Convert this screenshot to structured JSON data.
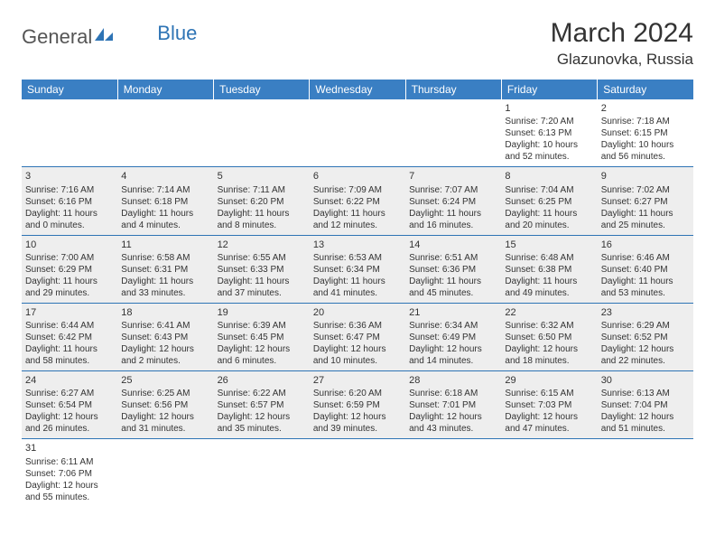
{
  "logo": {
    "part1": "General",
    "part2": "Blue"
  },
  "title": "March 2024",
  "location": "Glazunovka, Russia",
  "weekdays": [
    "Sunday",
    "Monday",
    "Tuesday",
    "Wednesday",
    "Thursday",
    "Friday",
    "Saturday"
  ],
  "colors": {
    "header_bg": "#3a7fc3",
    "header_fg": "#ffffff",
    "rule": "#2e74b5",
    "shade": "#eeeeee",
    "text": "#333333",
    "logo_gray": "#555555",
    "logo_blue": "#2e74b5"
  },
  "cells": [
    [
      null,
      null,
      null,
      null,
      null,
      {
        "n": "1",
        "sr": "Sunrise: 7:20 AM",
        "ss": "Sunset: 6:13 PM",
        "d1": "Daylight: 10 hours",
        "d2": "and 52 minutes."
      },
      {
        "n": "2",
        "sr": "Sunrise: 7:18 AM",
        "ss": "Sunset: 6:15 PM",
        "d1": "Daylight: 10 hours",
        "d2": "and 56 minutes."
      }
    ],
    [
      {
        "n": "3",
        "sr": "Sunrise: 7:16 AM",
        "ss": "Sunset: 6:16 PM",
        "d1": "Daylight: 11 hours",
        "d2": "and 0 minutes."
      },
      {
        "n": "4",
        "sr": "Sunrise: 7:14 AM",
        "ss": "Sunset: 6:18 PM",
        "d1": "Daylight: 11 hours",
        "d2": "and 4 minutes."
      },
      {
        "n": "5",
        "sr": "Sunrise: 7:11 AM",
        "ss": "Sunset: 6:20 PM",
        "d1": "Daylight: 11 hours",
        "d2": "and 8 minutes."
      },
      {
        "n": "6",
        "sr": "Sunrise: 7:09 AM",
        "ss": "Sunset: 6:22 PM",
        "d1": "Daylight: 11 hours",
        "d2": "and 12 minutes."
      },
      {
        "n": "7",
        "sr": "Sunrise: 7:07 AM",
        "ss": "Sunset: 6:24 PM",
        "d1": "Daylight: 11 hours",
        "d2": "and 16 minutes."
      },
      {
        "n": "8",
        "sr": "Sunrise: 7:04 AM",
        "ss": "Sunset: 6:25 PM",
        "d1": "Daylight: 11 hours",
        "d2": "and 20 minutes."
      },
      {
        "n": "9",
        "sr": "Sunrise: 7:02 AM",
        "ss": "Sunset: 6:27 PM",
        "d1": "Daylight: 11 hours",
        "d2": "and 25 minutes."
      }
    ],
    [
      {
        "n": "10",
        "sr": "Sunrise: 7:00 AM",
        "ss": "Sunset: 6:29 PM",
        "d1": "Daylight: 11 hours",
        "d2": "and 29 minutes."
      },
      {
        "n": "11",
        "sr": "Sunrise: 6:58 AM",
        "ss": "Sunset: 6:31 PM",
        "d1": "Daylight: 11 hours",
        "d2": "and 33 minutes."
      },
      {
        "n": "12",
        "sr": "Sunrise: 6:55 AM",
        "ss": "Sunset: 6:33 PM",
        "d1": "Daylight: 11 hours",
        "d2": "and 37 minutes."
      },
      {
        "n": "13",
        "sr": "Sunrise: 6:53 AM",
        "ss": "Sunset: 6:34 PM",
        "d1": "Daylight: 11 hours",
        "d2": "and 41 minutes."
      },
      {
        "n": "14",
        "sr": "Sunrise: 6:51 AM",
        "ss": "Sunset: 6:36 PM",
        "d1": "Daylight: 11 hours",
        "d2": "and 45 minutes."
      },
      {
        "n": "15",
        "sr": "Sunrise: 6:48 AM",
        "ss": "Sunset: 6:38 PM",
        "d1": "Daylight: 11 hours",
        "d2": "and 49 minutes."
      },
      {
        "n": "16",
        "sr": "Sunrise: 6:46 AM",
        "ss": "Sunset: 6:40 PM",
        "d1": "Daylight: 11 hours",
        "d2": "and 53 minutes."
      }
    ],
    [
      {
        "n": "17",
        "sr": "Sunrise: 6:44 AM",
        "ss": "Sunset: 6:42 PM",
        "d1": "Daylight: 11 hours",
        "d2": "and 58 minutes."
      },
      {
        "n": "18",
        "sr": "Sunrise: 6:41 AM",
        "ss": "Sunset: 6:43 PM",
        "d1": "Daylight: 12 hours",
        "d2": "and 2 minutes."
      },
      {
        "n": "19",
        "sr": "Sunrise: 6:39 AM",
        "ss": "Sunset: 6:45 PM",
        "d1": "Daylight: 12 hours",
        "d2": "and 6 minutes."
      },
      {
        "n": "20",
        "sr": "Sunrise: 6:36 AM",
        "ss": "Sunset: 6:47 PM",
        "d1": "Daylight: 12 hours",
        "d2": "and 10 minutes."
      },
      {
        "n": "21",
        "sr": "Sunrise: 6:34 AM",
        "ss": "Sunset: 6:49 PM",
        "d1": "Daylight: 12 hours",
        "d2": "and 14 minutes."
      },
      {
        "n": "22",
        "sr": "Sunrise: 6:32 AM",
        "ss": "Sunset: 6:50 PM",
        "d1": "Daylight: 12 hours",
        "d2": "and 18 minutes."
      },
      {
        "n": "23",
        "sr": "Sunrise: 6:29 AM",
        "ss": "Sunset: 6:52 PM",
        "d1": "Daylight: 12 hours",
        "d2": "and 22 minutes."
      }
    ],
    [
      {
        "n": "24",
        "sr": "Sunrise: 6:27 AM",
        "ss": "Sunset: 6:54 PM",
        "d1": "Daylight: 12 hours",
        "d2": "and 26 minutes."
      },
      {
        "n": "25",
        "sr": "Sunrise: 6:25 AM",
        "ss": "Sunset: 6:56 PM",
        "d1": "Daylight: 12 hours",
        "d2": "and 31 minutes."
      },
      {
        "n": "26",
        "sr": "Sunrise: 6:22 AM",
        "ss": "Sunset: 6:57 PM",
        "d1": "Daylight: 12 hours",
        "d2": "and 35 minutes."
      },
      {
        "n": "27",
        "sr": "Sunrise: 6:20 AM",
        "ss": "Sunset: 6:59 PM",
        "d1": "Daylight: 12 hours",
        "d2": "and 39 minutes."
      },
      {
        "n": "28",
        "sr": "Sunrise: 6:18 AM",
        "ss": "Sunset: 7:01 PM",
        "d1": "Daylight: 12 hours",
        "d2": "and 43 minutes."
      },
      {
        "n": "29",
        "sr": "Sunrise: 6:15 AM",
        "ss": "Sunset: 7:03 PM",
        "d1": "Daylight: 12 hours",
        "d2": "and 47 minutes."
      },
      {
        "n": "30",
        "sr": "Sunrise: 6:13 AM",
        "ss": "Sunset: 7:04 PM",
        "d1": "Daylight: 12 hours",
        "d2": "and 51 minutes."
      }
    ],
    [
      {
        "n": "31",
        "sr": "Sunrise: 6:11 AM",
        "ss": "Sunset: 7:06 PM",
        "d1": "Daylight: 12 hours",
        "d2": "and 55 minutes."
      },
      null,
      null,
      null,
      null,
      null,
      null
    ]
  ]
}
